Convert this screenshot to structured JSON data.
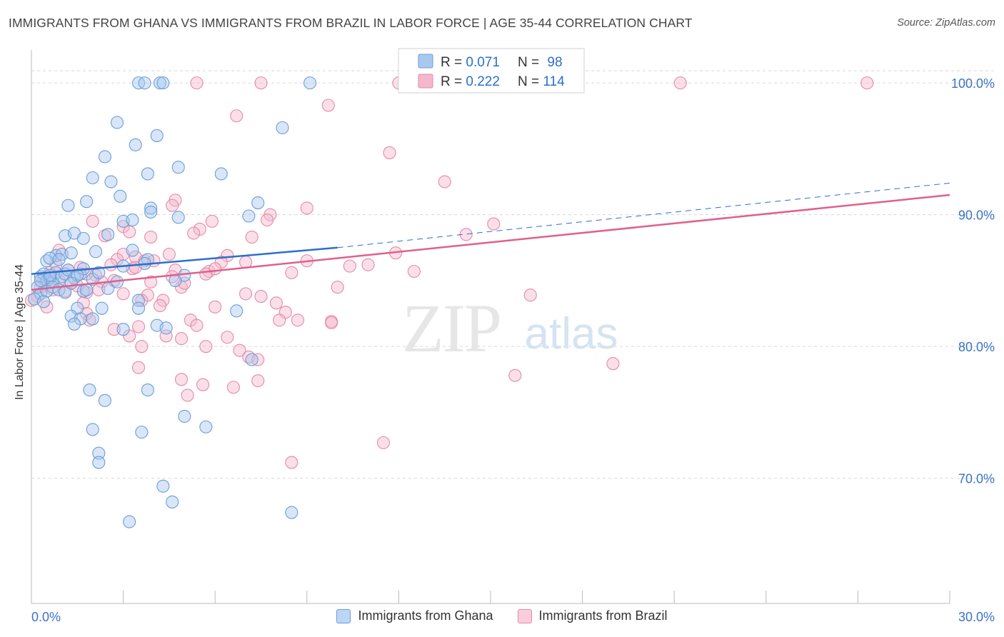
{
  "title": "IMMIGRANTS FROM GHANA VS IMMIGRANTS FROM BRAZIL IN LABOR FORCE | AGE 35-44 CORRELATION CHART",
  "source": "Source: ZipAtlas.com",
  "watermark": {
    "zip": "ZIP",
    "atlas": "atlas"
  },
  "colors": {
    "ghana_fill": "#a8c8f0",
    "ghana_stroke": "#6a9ed8",
    "ghana_line": "#2c6fcc",
    "brazil_fill": "#f4b8cc",
    "brazil_stroke": "#e58aa8",
    "brazil_line": "#e0608c",
    "tick_label": "#3a74c4",
    "grid": "#d8d8d8"
  },
  "legend": {
    "rows": [
      {
        "r_label": "R = ",
        "r_value": "0.071",
        "n_label": "N = ",
        "n_value": "98"
      },
      {
        "r_label": "R = ",
        "r_value": "0.222",
        "n_label": "N = ",
        "n_value": "114"
      }
    ]
  },
  "chart_data": {
    "type": "scatter",
    "title": "IMMIGRANTS FROM GHANA VS IMMIGRANTS FROM BRAZIL IN LABOR FORCE | AGE 35-44 CORRELATION CHART",
    "xlabel": "",
    "ylabel": "In Labor Force | Age 35-44",
    "xlim": [
      0,
      30
    ],
    "ylim": [
      60.5,
      102.5
    ],
    "x_tick_labels": [
      "0.0%",
      "30.0%"
    ],
    "y_ticks": [
      70,
      80,
      90,
      100
    ],
    "y_tick_labels": [
      "70.0%",
      "80.0%",
      "90.0%",
      "100.0%"
    ],
    "grid": true,
    "legend_position": "top-center",
    "series": [
      {
        "name": "Immigrants from Ghana",
        "R": 0.071,
        "N": 98,
        "trend": {
          "x0": 0,
          "y0": 85.5,
          "x1": 10,
          "y1": 87.5,
          "dashed_to_x": 30,
          "dashed_to_y": 92.4
        },
        "points": [
          [
            3.5,
            100
          ],
          [
            3.7,
            100
          ],
          [
            4.2,
            100
          ],
          [
            4.3,
            100
          ],
          [
            9.1,
            100
          ],
          [
            2.8,
            97.0
          ],
          [
            8.2,
            96.6
          ],
          [
            4.1,
            96.0
          ],
          [
            3.4,
            95.3
          ],
          [
            2.4,
            94.4
          ],
          [
            4.8,
            93.6
          ],
          [
            3.8,
            93.1
          ],
          [
            6.2,
            93.1
          ],
          [
            2.0,
            92.8
          ],
          [
            2.6,
            92.5
          ],
          [
            2.9,
            91.4
          ],
          [
            1.8,
            91.0
          ],
          [
            1.2,
            90.7
          ],
          [
            3.9,
            90.5
          ],
          [
            7.4,
            90.9
          ],
          [
            3.9,
            90.2
          ],
          [
            4.8,
            89.8
          ],
          [
            7.1,
            89.9
          ],
          [
            3.0,
            89.5
          ],
          [
            3.3,
            89.6
          ],
          [
            1.1,
            88.4
          ],
          [
            1.4,
            88.6
          ],
          [
            1.7,
            88.2
          ],
          [
            2.5,
            88.5
          ],
          [
            0.8,
            86.9
          ],
          [
            1.0,
            87.0
          ],
          [
            1.3,
            87.1
          ],
          [
            2.1,
            87.2
          ],
          [
            0.5,
            86.5
          ],
          [
            0.6,
            86.7
          ],
          [
            0.9,
            86.6
          ],
          [
            3.3,
            87.3
          ],
          [
            3.8,
            86.6
          ],
          [
            3.7,
            86.3
          ],
          [
            3.0,
            86.1
          ],
          [
            0.3,
            85.3
          ],
          [
            0.4,
            85.5
          ],
          [
            0.5,
            85.0
          ],
          [
            0.6,
            85.2
          ],
          [
            0.7,
            84.9
          ],
          [
            0.8,
            85.6
          ],
          [
            1.0,
            85.3
          ],
          [
            1.1,
            85.5
          ],
          [
            1.2,
            85.8
          ],
          [
            1.4,
            85.2
          ],
          [
            1.6,
            85.5
          ],
          [
            1.7,
            85.9
          ],
          [
            2.0,
            85.1
          ],
          [
            0.2,
            84.5
          ],
          [
            0.3,
            84.0
          ],
          [
            0.5,
            84.2
          ],
          [
            0.7,
            84.5
          ],
          [
            0.9,
            84.3
          ],
          [
            1.1,
            84.1
          ],
          [
            1.7,
            84.2
          ],
          [
            1.8,
            84.3
          ],
          [
            2.5,
            84.4
          ],
          [
            5.0,
            85.4
          ],
          [
            4.7,
            85.0
          ],
          [
            0.1,
            83.6
          ],
          [
            0.4,
            83.4
          ],
          [
            3.5,
            83.5
          ],
          [
            1.5,
            82.9
          ],
          [
            2.3,
            82.9
          ],
          [
            3.5,
            82.9
          ],
          [
            1.3,
            82.3
          ],
          [
            1.6,
            82.1
          ],
          [
            2.0,
            82.1
          ],
          [
            6.7,
            82.7
          ],
          [
            1.4,
            81.7
          ],
          [
            4.1,
            81.6
          ],
          [
            3.0,
            81.3
          ],
          [
            7.2,
            79.0
          ],
          [
            1.9,
            76.7
          ],
          [
            3.8,
            76.7
          ],
          [
            2.4,
            75.9
          ],
          [
            5.0,
            74.7
          ],
          [
            5.7,
            73.9
          ],
          [
            2.0,
            73.7
          ],
          [
            3.6,
            73.5
          ],
          [
            2.2,
            71.9
          ],
          [
            2.2,
            71.2
          ],
          [
            4.3,
            69.4
          ],
          [
            4.6,
            68.2
          ],
          [
            8.5,
            67.4
          ],
          [
            3.2,
            66.7
          ],
          [
            0.3,
            85.0
          ],
          [
            1.5,
            85.4
          ],
          [
            2.2,
            85.6
          ],
          [
            0.6,
            85.4
          ],
          [
            1.3,
            84.8
          ],
          [
            2.8,
            84.9
          ],
          [
            4.4,
            81.4
          ]
        ]
      },
      {
        "name": "Immigrants from Brazil",
        "R": 0.222,
        "N": 114,
        "trend": {
          "x0": 0,
          "y0": 84.3,
          "x1": 30,
          "y1": 91.5
        },
        "points": [
          [
            5.4,
            100
          ],
          [
            7.5,
            100
          ],
          [
            12.0,
            100
          ],
          [
            21.2,
            100
          ],
          [
            27.3,
            100
          ],
          [
            9.7,
            98.3
          ],
          [
            6.7,
            97.5
          ],
          [
            11.7,
            94.7
          ],
          [
            13.5,
            92.5
          ],
          [
            4.7,
            91.1
          ],
          [
            4.6,
            90.7
          ],
          [
            9.0,
            90.5
          ],
          [
            7.8,
            90.0
          ],
          [
            7.7,
            89.6
          ],
          [
            2.0,
            89.5
          ],
          [
            5.9,
            89.5
          ],
          [
            3.0,
            89.1
          ],
          [
            5.5,
            88.9
          ],
          [
            3.2,
            88.7
          ],
          [
            15.1,
            89.3
          ],
          [
            2.4,
            88.4
          ],
          [
            5.3,
            88.6
          ],
          [
            3.9,
            88.3
          ],
          [
            7.2,
            88.3
          ],
          [
            14.2,
            88.5
          ],
          [
            0.9,
            87.3
          ],
          [
            3.0,
            87.0
          ],
          [
            3.4,
            86.8
          ],
          [
            4.5,
            87.0
          ],
          [
            6.4,
            86.9
          ],
          [
            11.9,
            87.1
          ],
          [
            2.8,
            86.6
          ],
          [
            3.7,
            86.5
          ],
          [
            6.2,
            86.4
          ],
          [
            7.0,
            86.4
          ],
          [
            10.4,
            86.1
          ],
          [
            11.0,
            86.2
          ],
          [
            0.8,
            86.2
          ],
          [
            1.6,
            86.0
          ],
          [
            2.6,
            86.2
          ],
          [
            3.3,
            85.9
          ],
          [
            4.7,
            85.8
          ],
          [
            5.8,
            85.7
          ],
          [
            6.0,
            85.9
          ],
          [
            8.5,
            85.6
          ],
          [
            12.5,
            85.7
          ],
          [
            0.6,
            85.6
          ],
          [
            1.2,
            85.8
          ],
          [
            1.8,
            85.5
          ],
          [
            2.1,
            85.4
          ],
          [
            4.6,
            85.3
          ],
          [
            5.7,
            85.5
          ],
          [
            0.4,
            85.1
          ],
          [
            0.9,
            85.0
          ],
          [
            1.3,
            84.8
          ],
          [
            2.3,
            84.9
          ],
          [
            3.9,
            84.9
          ],
          [
            4.9,
            84.5
          ],
          [
            0.3,
            84.5
          ],
          [
            0.7,
            84.3
          ],
          [
            1.1,
            84.2
          ],
          [
            1.8,
            84.1
          ],
          [
            2.2,
            84.3
          ],
          [
            3.0,
            84.0
          ],
          [
            3.8,
            83.9
          ],
          [
            7.0,
            84.0
          ],
          [
            16.3,
            83.9
          ],
          [
            3.6,
            83.5
          ],
          [
            4.3,
            83.5
          ],
          [
            0.2,
            83.8
          ],
          [
            8.0,
            83.3
          ],
          [
            1.7,
            83.3
          ],
          [
            4.2,
            83.1
          ],
          [
            8.3,
            82.6
          ],
          [
            1.8,
            82.5
          ],
          [
            1.9,
            82.0
          ],
          [
            5.2,
            82.0
          ],
          [
            8.1,
            82.0
          ],
          [
            8.7,
            82.0
          ],
          [
            9.8,
            81.9
          ],
          [
            9.8,
            81.8
          ],
          [
            3.5,
            81.5
          ],
          [
            5.4,
            81.6
          ],
          [
            2.7,
            81.3
          ],
          [
            3.2,
            80.8
          ],
          [
            4.4,
            80.8
          ],
          [
            4.9,
            80.6
          ],
          [
            6.4,
            80.7
          ],
          [
            3.6,
            80.0
          ],
          [
            5.7,
            80.0
          ],
          [
            6.8,
            79.7
          ],
          [
            7.1,
            79.2
          ],
          [
            7.4,
            79.0
          ],
          [
            19.0,
            78.7
          ],
          [
            3.5,
            78.4
          ],
          [
            15.8,
            77.8
          ],
          [
            4.9,
            77.5
          ],
          [
            7.4,
            77.4
          ],
          [
            5.6,
            77.1
          ],
          [
            6.6,
            76.9
          ],
          [
            5.1,
            76.3
          ],
          [
            11.5,
            72.7
          ],
          [
            8.5,
            71.2
          ],
          [
            0.0,
            83.5
          ],
          [
            0.5,
            83.0
          ],
          [
            1.5,
            84.6
          ],
          [
            2.7,
            85.0
          ],
          [
            3.4,
            86.0
          ],
          [
            4.0,
            86.5
          ],
          [
            5.0,
            84.8
          ],
          [
            6.0,
            83.0
          ],
          [
            7.5,
            83.8
          ],
          [
            9.0,
            86.5
          ],
          [
            10.0,
            84.5
          ]
        ]
      }
    ]
  },
  "bottom_legend": {
    "items": [
      {
        "label": "Immigrants from Ghana"
      },
      {
        "label": "Immigrants from Brazil"
      }
    ]
  }
}
